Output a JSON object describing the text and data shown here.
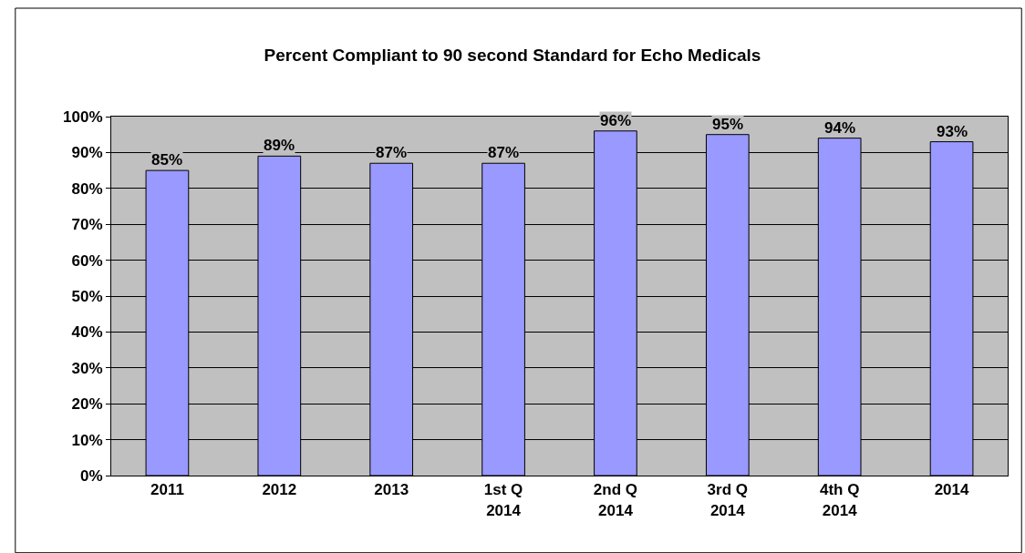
{
  "chart_data": {
    "type": "bar",
    "title": "Percent Compliant to 90 second Standard for Echo Medicals",
    "categories": [
      "2011",
      "2012",
      "2013",
      "1st Q\n2014",
      "2nd Q\n2014",
      "3rd Q\n2014",
      "4th Q\n2014",
      "2014"
    ],
    "values": [
      85,
      89,
      87,
      87,
      96,
      95,
      94,
      93
    ],
    "value_labels": [
      "85%",
      "89%",
      "87%",
      "87%",
      "96%",
      "95%",
      "94%",
      "93%"
    ],
    "color": "#9999ff",
    "ylim": [
      0,
      100
    ],
    "yticks": [
      {
        "value": 0,
        "label": "0%"
      },
      {
        "value": 10,
        "label": "10%"
      },
      {
        "value": 20,
        "label": "20%"
      },
      {
        "value": 30,
        "label": "30%"
      },
      {
        "value": 40,
        "label": "40%"
      },
      {
        "value": 50,
        "label": "50%"
      },
      {
        "value": 60,
        "label": "60%"
      },
      {
        "value": 70,
        "label": "70%"
      },
      {
        "value": 80,
        "label": "80%"
      },
      {
        "value": 90,
        "label": "90%"
      },
      {
        "value": 100,
        "label": "100%"
      }
    ],
    "grid": "y",
    "legend": false
  }
}
